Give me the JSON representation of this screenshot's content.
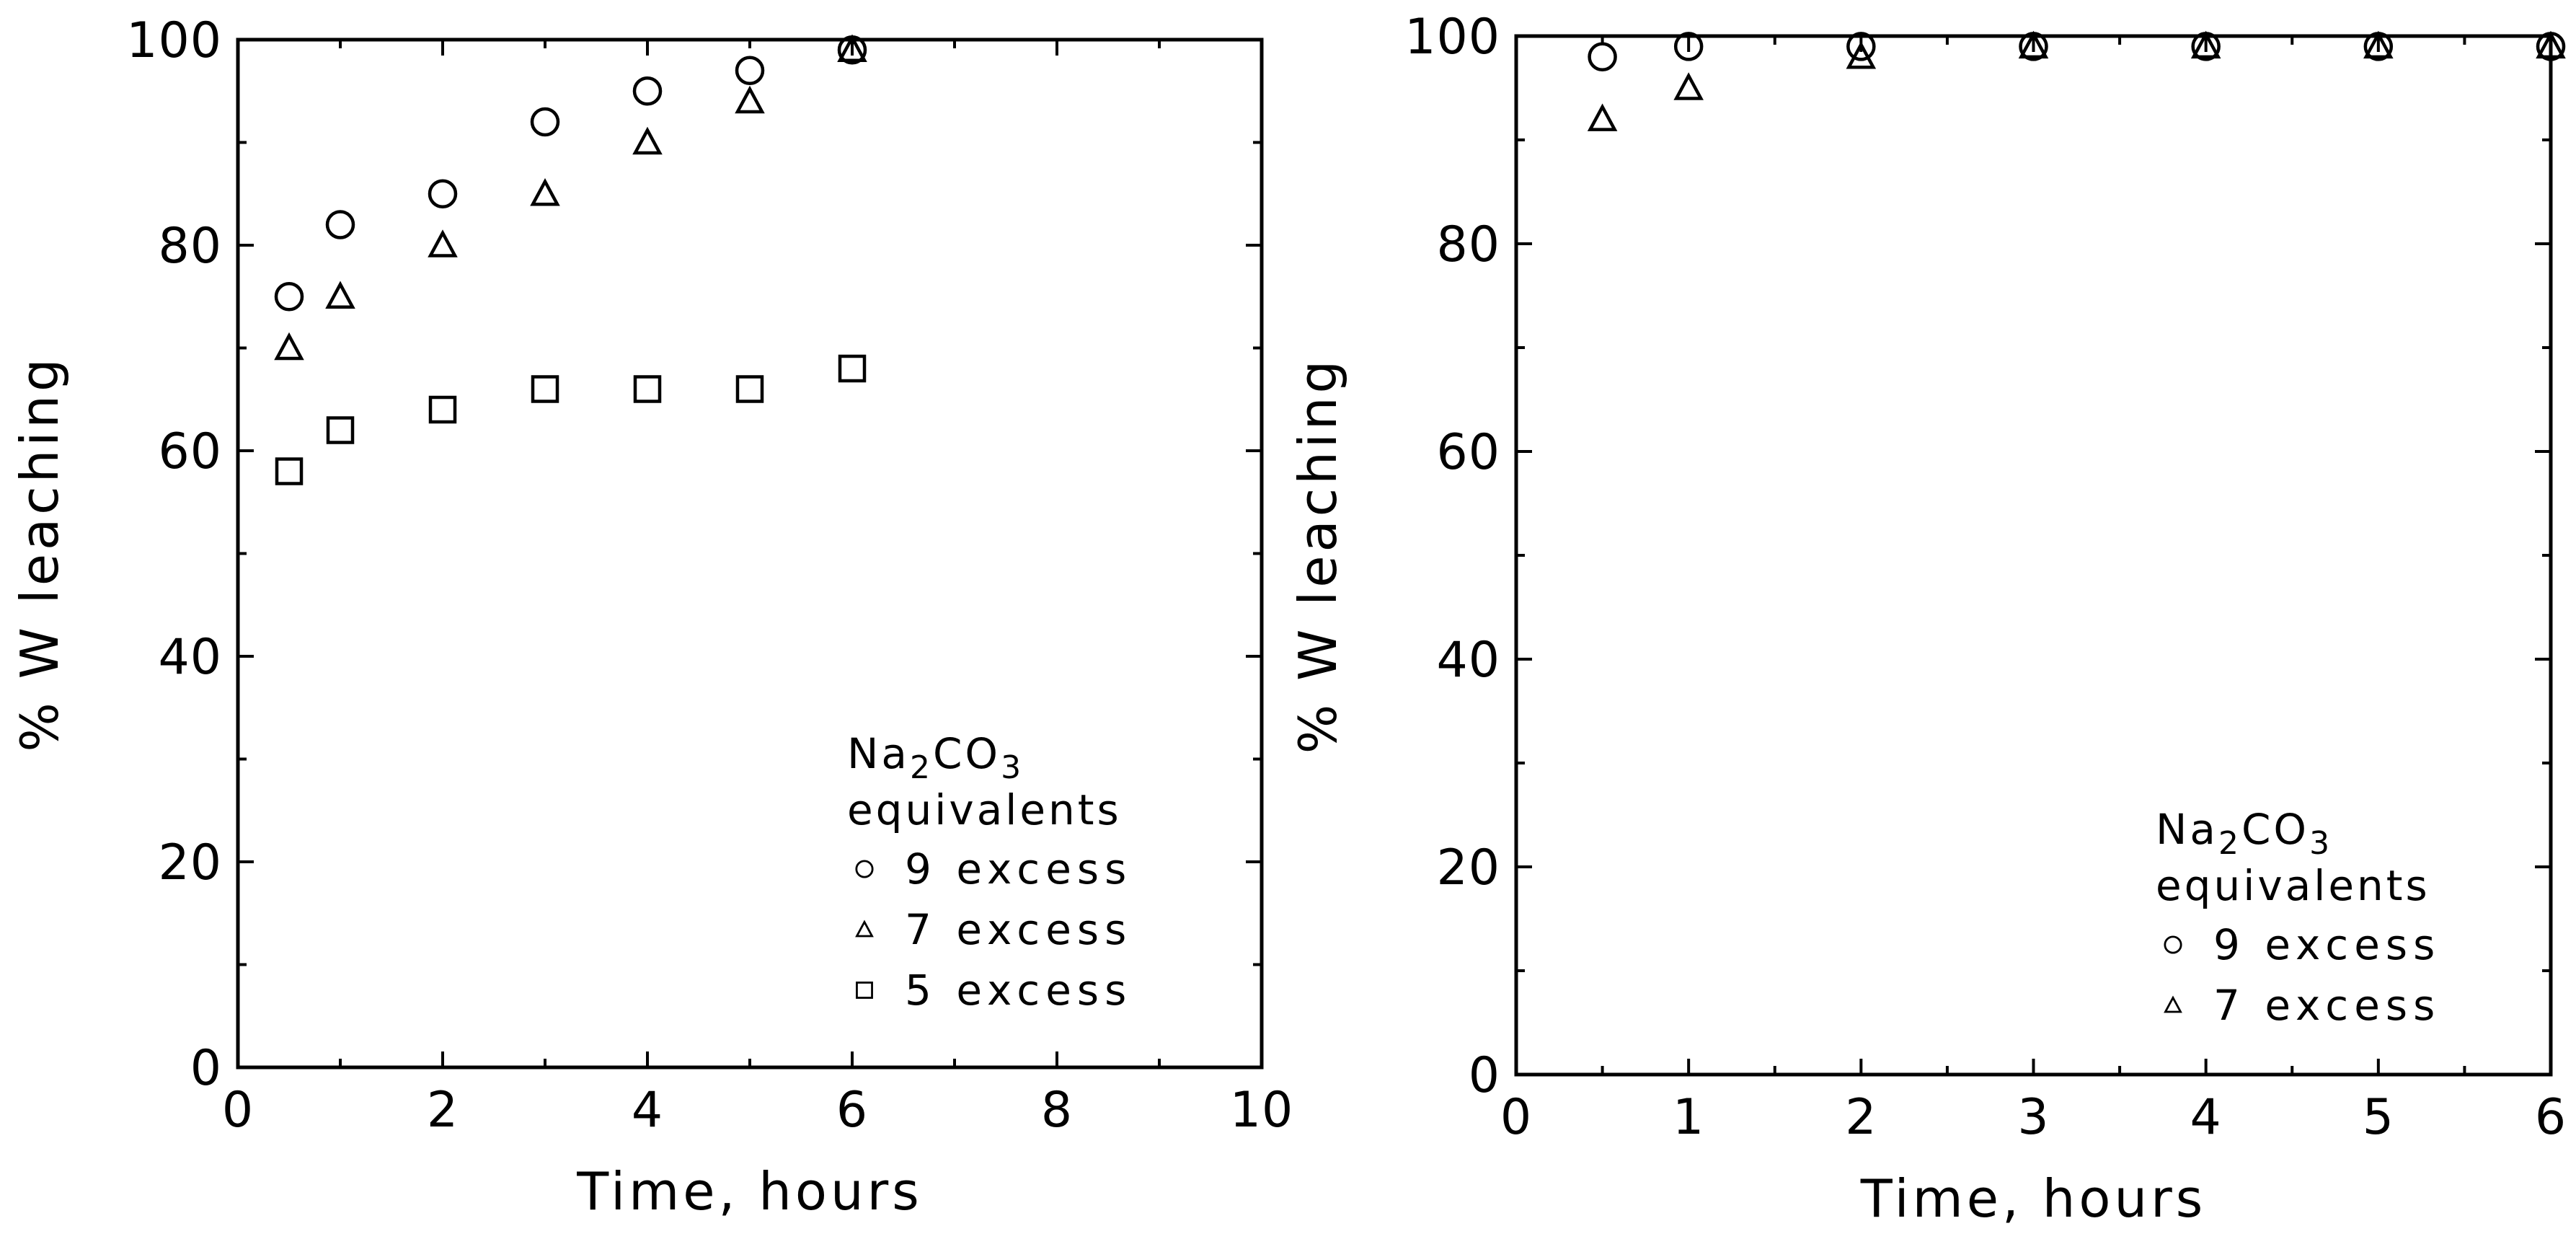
{
  "chart_data": [
    {
      "type": "scatter",
      "title": "",
      "xlabel": "Time, hours",
      "ylabel": "% W leaching",
      "xlim": [
        0,
        10
      ],
      "ylim": [
        0,
        100
      ],
      "xticks": [
        "0",
        "2",
        "4",
        "6",
        "8",
        "10"
      ],
      "yticks": [
        "0",
        "20",
        "40",
        "60",
        "80",
        "100"
      ],
      "xtick_values": [
        0,
        2,
        4,
        6,
        8,
        10
      ],
      "ytick_values": [
        0,
        20,
        40,
        60,
        80,
        100
      ],
      "x_minor_step": 1,
      "y_minor_step": 10,
      "grid": false,
      "legend": {
        "placement": "bottom-right",
        "title_main": "Na",
        "title_sub1": "2",
        "title_mid": "CO",
        "title_sub2": "3",
        "title_line2": "equivalents"
      },
      "series": [
        {
          "name": "9 excess",
          "marker": "circle",
          "x": [
            0.5,
            1,
            2,
            3,
            4,
            5,
            6
          ],
          "y": [
            75,
            82,
            85,
            92,
            95,
            97,
            99
          ]
        },
        {
          "name": "7 excess",
          "marker": "triangle",
          "x": [
            0.5,
            1,
            2,
            3,
            4,
            5,
            6
          ],
          "y": [
            70,
            75,
            80,
            85,
            90,
            94,
            99
          ]
        },
        {
          "name": "5 excess",
          "marker": "square",
          "x": [
            0.5,
            1,
            2,
            3,
            4,
            5,
            6
          ],
          "y": [
            58,
            62,
            64,
            66,
            66,
            66,
            68
          ]
        }
      ]
    },
    {
      "type": "scatter",
      "title": "",
      "xlabel": "Time, hours",
      "ylabel": "% W leaching",
      "xlim": [
        0,
        6
      ],
      "ylim": [
        0,
        100
      ],
      "xticks": [
        "0",
        "1",
        "2",
        "3",
        "4",
        "5",
        "6"
      ],
      "yticks": [
        "0",
        "20",
        "40",
        "60",
        "80",
        "100"
      ],
      "xtick_values": [
        0,
        1,
        2,
        3,
        4,
        5,
        6
      ],
      "ytick_values": [
        0,
        20,
        40,
        60,
        80,
        100
      ],
      "x_minor_step": 0.5,
      "y_minor_step": 10,
      "grid": false,
      "legend": {
        "placement": "bottom-right",
        "title_main": "Na",
        "title_sub1": "2",
        "title_mid": "CO",
        "title_sub2": "3",
        "title_line2": "equivalents"
      },
      "series": [
        {
          "name": "9 excess",
          "marker": "circle",
          "x": [
            0.5,
            1,
            2,
            3,
            4,
            5,
            6
          ],
          "y": [
            98,
            99,
            99,
            99,
            99,
            99,
            99
          ]
        },
        {
          "name": "7 excess",
          "marker": "triangle",
          "x": [
            0.5,
            1,
            2,
            3,
            4,
            5,
            6
          ],
          "y": [
            92,
            95,
            98,
            99,
            99,
            99,
            99
          ]
        }
      ]
    }
  ]
}
